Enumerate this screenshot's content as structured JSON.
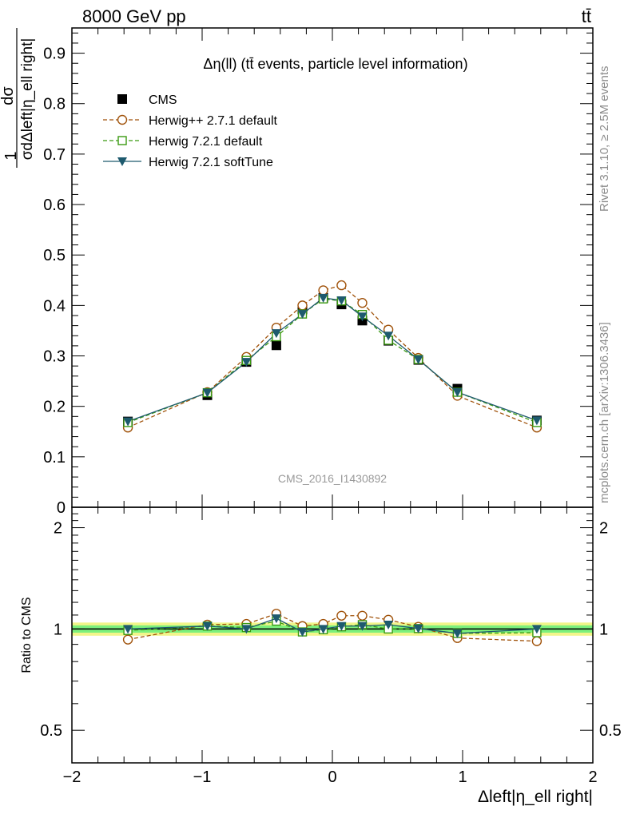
{
  "header": {
    "energy_label": "8000 GeV pp",
    "process_label": "tt̄"
  },
  "side_labels": {
    "rivet": "Rivet 3.1.10, ≥ 2.5M events",
    "mcplots": "mcplots.cern.ch [arXiv:1306.3436]"
  },
  "chart_data": [
    {
      "type": "line",
      "panel": "main",
      "title": "Δη(ll) (tt̄ events, particle level information)",
      "watermark": "CMS_2016_I1430892",
      "ylabel_numerator": "1",
      "ylabel_fraction_top": "dσ",
      "ylabel_fraction_bottom": "σdΔleft|η_ell right|",
      "xlabel": "Δleft|η_ell right|",
      "xlim": [
        -2,
        2
      ],
      "ylim": [
        0,
        0.95
      ],
      "yticks": [
        0,
        0.1,
        0.2,
        0.3,
        0.4,
        0.5,
        0.6,
        0.7,
        0.8,
        0.9
      ],
      "ytick_labels": [
        "0",
        "0.1",
        "0.2",
        "0.3",
        "0.4",
        "0.5",
        "0.6",
        "0.7",
        "0.8",
        "0.9"
      ],
      "xticks": [
        -2,
        -1,
        0,
        1,
        2
      ],
      "xtick_labels": [
        "−2",
        "−1",
        "0",
        "1",
        "2"
      ],
      "legend_position": "top-left",
      "x": [
        -1.57,
        -0.96,
        -0.66,
        -0.43,
        -0.23,
        -0.07,
        0.07,
        0.23,
        0.43,
        0.66,
        0.96,
        1.57
      ],
      "series": [
        {
          "name": "CMS",
          "style": "data",
          "color": "#000000",
          "values": [
            0.17,
            0.222,
            0.288,
            0.321,
            0.392,
            0.415,
            0.402,
            0.37,
            0.33,
            0.292,
            0.235,
            0.172
          ]
        },
        {
          "name": "Herwig++ 2.7.1 default",
          "style": "open-circle-dashed",
          "color": "#a0520a",
          "values": [
            0.158,
            0.228,
            0.298,
            0.356,
            0.4,
            0.43,
            0.44,
            0.405,
            0.352,
            0.296,
            0.221,
            0.158
          ]
        },
        {
          "name": "Herwig 7.2.1 default",
          "style": "open-square-dashed",
          "color": "#3a9a10",
          "values": [
            0.168,
            0.227,
            0.291,
            0.338,
            0.383,
            0.413,
            0.409,
            0.382,
            0.331,
            0.293,
            0.228,
            0.168
          ]
        },
        {
          "name": "Herwig 7.2.1 softTune",
          "style": "filled-triangle-solid",
          "color": "#1e5a6e",
          "values": [
            0.17,
            0.227,
            0.288,
            0.345,
            0.383,
            0.415,
            0.41,
            0.378,
            0.34,
            0.293,
            0.228,
            0.172
          ]
        }
      ]
    },
    {
      "type": "line",
      "panel": "ratio",
      "ylabel": "Ratio to CMS",
      "ylog": true,
      "ylim": [
        0.4,
        2.3
      ],
      "yticks": [
        0.5,
        1,
        2
      ],
      "ytick_labels": [
        "0.5",
        "1",
        "2"
      ],
      "band_inner": [
        0.975,
        1.025
      ],
      "band_outer": [
        0.955,
        1.045
      ],
      "band_inner_color": "#7cf07c",
      "band_outer_color": "#f2f58a",
      "x": [
        -1.57,
        -0.96,
        -0.66,
        -0.43,
        -0.23,
        -0.07,
        0.07,
        0.23,
        0.43,
        0.66,
        0.96,
        1.57
      ],
      "series": [
        {
          "name": "Herwig++ 2.7.1 default",
          "style": "open-circle-dashed",
          "color": "#a0520a",
          "values": [
            0.93,
            1.03,
            1.035,
            1.11,
            1.02,
            1.035,
            1.095,
            1.095,
            1.065,
            1.015,
            0.94,
            0.92
          ]
        },
        {
          "name": "Herwig 7.2.1 default",
          "style": "open-square-dashed",
          "color": "#3a9a10",
          "values": [
            0.99,
            1.02,
            1.01,
            1.055,
            0.98,
            0.995,
            1.015,
            1.03,
            1.0,
            1.003,
            0.97,
            0.975
          ]
        },
        {
          "name": "Herwig 7.2.1 softTune",
          "style": "filled-triangle-solid",
          "color": "#1e5a6e",
          "values": [
            1.0,
            1.02,
            1.0,
            1.075,
            0.98,
            1.0,
            1.02,
            1.02,
            1.03,
            1.003,
            0.97,
            1.0
          ]
        }
      ]
    }
  ]
}
